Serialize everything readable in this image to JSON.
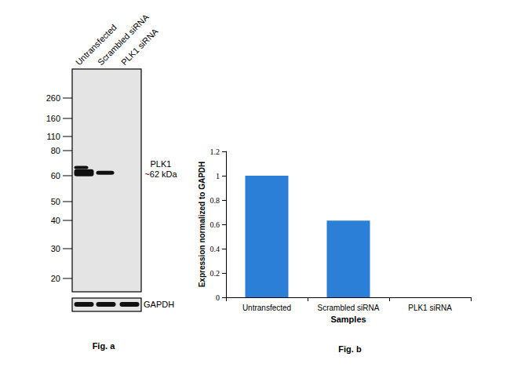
{
  "blot": {
    "caption": "Fig. a",
    "lanes": [
      "Untransfected",
      "Scrambled siRNA",
      "PLK1 siRNA"
    ],
    "markers_kda": [
      260,
      160,
      110,
      80,
      60,
      50,
      40,
      30,
      20
    ],
    "target_label": [
      "PLK1",
      "~62 kDa"
    ],
    "bands": [
      {
        "lane": 0,
        "kda": 66
      },
      {
        "lane": 0,
        "kda": 62
      },
      {
        "lane": 1,
        "kda": 62
      }
    ],
    "loading_control": "GAPDH"
  },
  "chart_data": {
    "type": "bar",
    "title": "Fig. b",
    "x_label": "Samples",
    "y_label": "Expression normalized to GAPDH",
    "categories": [
      "Untransfected",
      "Scrambled siRNA",
      "PLK1 siRNA"
    ],
    "values": [
      1,
      0.63,
      0
    ],
    "color": "#2b7fd6",
    "ylim": [
      0,
      1.2
    ],
    "yticks": [
      0,
      0.2,
      0.4,
      0.6,
      0.8,
      1,
      1.2
    ],
    "grid": false
  }
}
